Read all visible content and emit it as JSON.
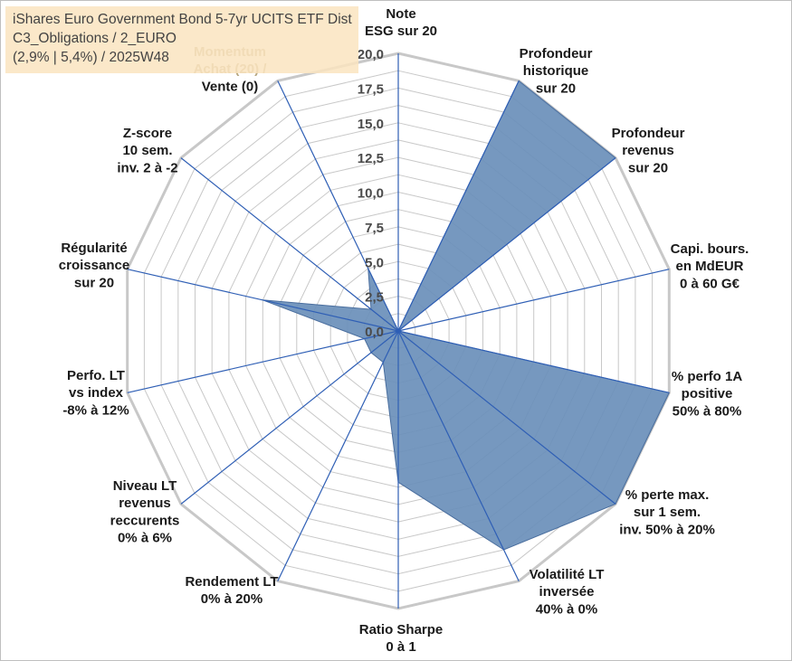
{
  "chart_data": {
    "type": "radar",
    "title_lines": [
      "iShares Euro Government Bond 5-7yr UCITS ETF Dist",
      "C3_Obligations / 2_EURO",
      "(2,9% | 5,4%) / 2025W48"
    ],
    "rlim": [
      0,
      20
    ],
    "r_ticks": [
      "0,0",
      "2,5",
      "5,0",
      "7,5",
      "10,0",
      "12,5",
      "15,0",
      "17,5",
      "20,0"
    ],
    "axes": [
      {
        "label_lines": [
          "Note",
          "ESG sur 20"
        ],
        "value": 0
      },
      {
        "label_lines": [
          "Profondeur",
          "historique",
          "sur 20"
        ],
        "value": 20
      },
      {
        "label_lines": [
          "Profondeur",
          "revenus",
          "sur 20"
        ],
        "value": 20
      },
      {
        "label_lines": [
          "Capi. bours.",
          "en MdEUR",
          "0 à 60 G€"
        ],
        "value": 0
      },
      {
        "label_lines": [
          "% perfo 1A",
          "positive",
          "50% à 80%"
        ],
        "value": 20
      },
      {
        "label_lines": [
          "% perte max.",
          "sur 1 sem.",
          "inv. 50% à 20%"
        ],
        "value": 20
      },
      {
        "label_lines": [
          "Volatilité LT",
          "inversée",
          "40% à 0%"
        ],
        "value": 17.5
      },
      {
        "label_lines": [
          "Ratio Sharpe",
          "0 à 1"
        ],
        "value": 10.9
      },
      {
        "label_lines": [
          "Rendement LT",
          "0% à 20%"
        ],
        "value": 2.5
      },
      {
        "label_lines": [
          "Niveau LT",
          "revenus",
          "reccurents",
          "0% à 6%"
        ],
        "value": 2.5
      },
      {
        "label_lines": [
          "Perfo. LT",
          "vs index",
          "-8% à 12%"
        ],
        "value": 2.5
      },
      {
        "label_lines": [
          "Régularité",
          "croissance",
          "sur 20"
        ],
        "value": 10
      },
      {
        "label_lines": [
          "Z-score",
          "10 sem.",
          "inv. 2 à -2"
        ],
        "value": 2.5
      },
      {
        "label_lines": [
          "Momentum",
          "Achat (20) /",
          "Vente (0)"
        ],
        "value": 5
      }
    ],
    "colors": {
      "fill": "#6a8fba",
      "fill_stroke": "#4a6e9e",
      "spoke": "#2f5fb5",
      "grid": "#c8c8c8",
      "label": "#1a1a1a",
      "momentum_label": "#b8a882"
    }
  }
}
